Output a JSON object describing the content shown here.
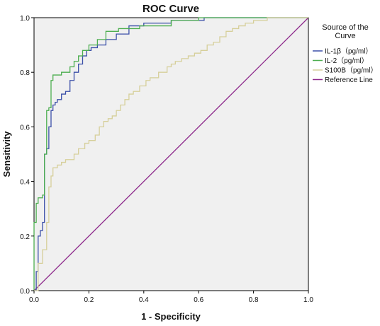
{
  "chart_data": {
    "type": "line",
    "title": "ROC Curve",
    "xlabel": "1 - Specificity",
    "ylabel": "Sensitivity",
    "xlim": [
      0,
      1
    ],
    "ylim": [
      0,
      1
    ],
    "x_ticks": [
      "0.0",
      "0.2",
      "0.4",
      "0.6",
      "0.8",
      "1.0"
    ],
    "y_ticks": [
      "0.0",
      "0.2",
      "0.4",
      "0.6",
      "0.8",
      "1.0"
    ],
    "grid": false,
    "legend_position": "right",
    "legend_title_lines": [
      "Source of the",
      "Curve"
    ],
    "series": [
      {
        "name": "IL-1β（pg/ml）",
        "color": "#3b4fa8",
        "x": [
          0,
          0.008,
          0.008,
          0.015,
          0.015,
          0.023,
          0.023,
          0.031,
          0.031,
          0.038,
          0.038,
          0.046,
          0.046,
          0.054,
          0.054,
          0.062,
          0.062,
          0.069,
          0.069,
          0.077,
          0.077,
          0.085,
          0.085,
          0.1,
          0.1,
          0.115,
          0.115,
          0.131,
          0.131,
          0.146,
          0.146,
          0.162,
          0.162,
          0.177,
          0.177,
          0.192,
          0.192,
          0.208,
          0.208,
          0.231,
          0.231,
          0.262,
          0.262,
          0.3,
          0.3,
          0.346,
          0.346,
          0.4,
          0.4,
          0.5,
          0.5,
          0.62,
          0.62,
          1.0
        ],
        "y": [
          0,
          0,
          0.07,
          0.07,
          0.2,
          0.2,
          0.22,
          0.22,
          0.25,
          0.25,
          0.5,
          0.5,
          0.52,
          0.52,
          0.6,
          0.6,
          0.66,
          0.66,
          0.68,
          0.68,
          0.69,
          0.69,
          0.7,
          0.7,
          0.72,
          0.72,
          0.73,
          0.73,
          0.77,
          0.77,
          0.8,
          0.8,
          0.83,
          0.83,
          0.86,
          0.86,
          0.88,
          0.88,
          0.89,
          0.89,
          0.9,
          0.9,
          0.92,
          0.92,
          0.94,
          0.94,
          0.97,
          0.97,
          0.98,
          0.98,
          0.99,
          0.99,
          1.0,
          1.0
        ]
      },
      {
        "name": "IL-2（pg/ml）",
        "color": "#4cae4f",
        "x": [
          0,
          0,
          0.008,
          0.008,
          0.015,
          0.015,
          0.031,
          0.031,
          0.038,
          0.038,
          0.046,
          0.046,
          0.054,
          0.054,
          0.062,
          0.062,
          0.069,
          0.069,
          0.1,
          0.1,
          0.131,
          0.131,
          0.146,
          0.146,
          0.162,
          0.162,
          0.177,
          0.177,
          0.2,
          0.2,
          0.231,
          0.231,
          0.262,
          0.262,
          0.308,
          0.308,
          0.385,
          0.385,
          0.5,
          0.5,
          0.6,
          0.6,
          1.0
        ],
        "y": [
          0,
          0.25,
          0.25,
          0.32,
          0.32,
          0.34,
          0.34,
          0.35,
          0.35,
          0.5,
          0.5,
          0.66,
          0.66,
          0.67,
          0.67,
          0.77,
          0.77,
          0.79,
          0.79,
          0.8,
          0.8,
          0.82,
          0.82,
          0.84,
          0.84,
          0.86,
          0.86,
          0.88,
          0.88,
          0.9,
          0.9,
          0.92,
          0.92,
          0.95,
          0.95,
          0.96,
          0.96,
          0.97,
          0.97,
          0.99,
          0.99,
          1.0,
          1.0
        ]
      },
      {
        "name": "S100B（pg/ml）",
        "color": "#d6cf9a",
        "x": [
          0,
          0.015,
          0.015,
          0.031,
          0.031,
          0.046,
          0.046,
          0.054,
          0.054,
          0.062,
          0.062,
          0.069,
          0.069,
          0.085,
          0.085,
          0.1,
          0.1,
          0.115,
          0.115,
          0.146,
          0.146,
          0.162,
          0.162,
          0.185,
          0.185,
          0.2,
          0.2,
          0.223,
          0.223,
          0.238,
          0.238,
          0.254,
          0.254,
          0.27,
          0.27,
          0.285,
          0.285,
          0.3,
          0.3,
          0.315,
          0.315,
          0.331,
          0.331,
          0.346,
          0.346,
          0.362,
          0.362,
          0.385,
          0.385,
          0.408,
          0.408,
          0.423,
          0.423,
          0.454,
          0.454,
          0.485,
          0.485,
          0.5,
          0.5,
          0.515,
          0.515,
          0.538,
          0.538,
          0.562,
          0.562,
          0.585,
          0.585,
          0.608,
          0.608,
          0.631,
          0.631,
          0.654,
          0.654,
          0.677,
          0.677,
          0.7,
          0.7,
          0.723,
          0.723,
          0.746,
          0.746,
          0.77,
          0.77,
          0.8,
          0.8,
          0.85,
          0.85,
          0.92,
          0.92,
          1.0
        ],
        "y": [
          0,
          0,
          0.1,
          0.1,
          0.15,
          0.15,
          0.25,
          0.25,
          0.38,
          0.38,
          0.42,
          0.42,
          0.45,
          0.45,
          0.46,
          0.46,
          0.47,
          0.47,
          0.48,
          0.48,
          0.5,
          0.5,
          0.52,
          0.52,
          0.54,
          0.54,
          0.55,
          0.55,
          0.57,
          0.57,
          0.6,
          0.6,
          0.62,
          0.62,
          0.63,
          0.63,
          0.64,
          0.64,
          0.66,
          0.66,
          0.68,
          0.68,
          0.7,
          0.7,
          0.72,
          0.72,
          0.73,
          0.73,
          0.75,
          0.75,
          0.77,
          0.77,
          0.78,
          0.78,
          0.8,
          0.8,
          0.82,
          0.82,
          0.83,
          0.83,
          0.84,
          0.84,
          0.85,
          0.85,
          0.86,
          0.86,
          0.87,
          0.87,
          0.88,
          0.88,
          0.9,
          0.9,
          0.91,
          0.91,
          0.93,
          0.93,
          0.95,
          0.95,
          0.96,
          0.96,
          0.97,
          0.97,
          0.98,
          0.98,
          0.99,
          0.99,
          1.0,
          1.0,
          1.0,
          1.0
        ]
      },
      {
        "name": "Reference Line",
        "color": "#8e2a8c",
        "x": [
          0,
          1
        ],
        "y": [
          0,
          1
        ]
      }
    ]
  }
}
